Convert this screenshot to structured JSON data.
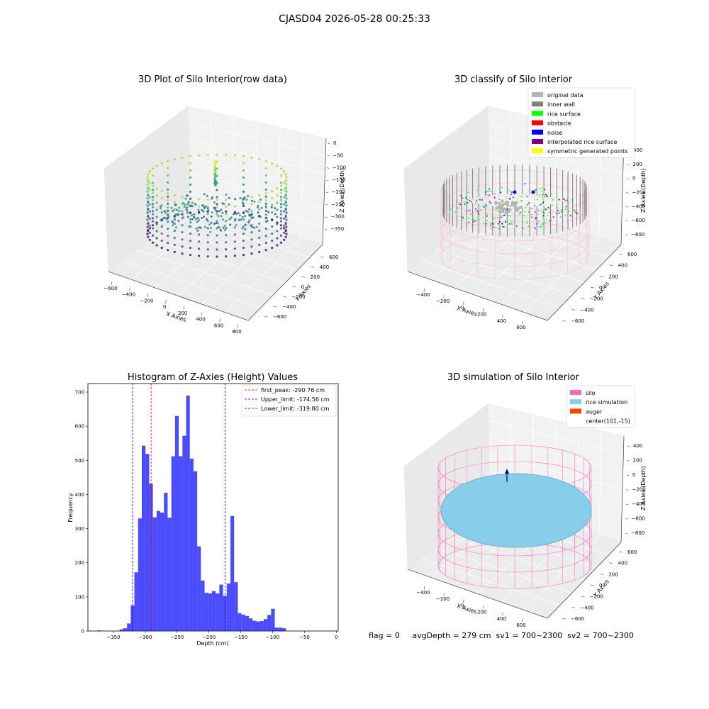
{
  "figure_title": "CJASD04 2026-05-28 00:25:33",
  "status": {
    "text": "flag = 0     avgDepth = 279 cm  sv1 = 700~2300  sv2 = 700~2300"
  },
  "panels": {
    "raw": {
      "title": "3D Plot of Silo Interior(row data)",
      "x_label": "X Axies",
      "y_label": "Y Axies",
      "z_label": "Z Axies (Depth)",
      "x_ticks": [
        "−600",
        "−400",
        "−200",
        "0",
        "200",
        "400",
        "600",
        "800"
      ],
      "y_ticks": [
        "−600",
        "−400",
        "−200",
        "0",
        "200",
        "400",
        "600"
      ],
      "z_ticks": [
        "0",
        "−50",
        "−100",
        "−150",
        "−200",
        "−250",
        "−300",
        "−350"
      ],
      "colormap": "viridis"
    },
    "classify": {
      "title": "3D classify of Silo Interior",
      "x_label": "X Axies",
      "y_label": "Y Axies",
      "z_label": "Z Axies (Depth)",
      "x_ticks": [
        "−400",
        "−200",
        "0",
        "200",
        "400",
        "600"
      ],
      "y_ticks": [
        "−600",
        "−400",
        "−200",
        "0",
        "200",
        "400",
        "600"
      ],
      "z_ticks": [
        "400",
        "200",
        "0",
        "−200",
        "−400",
        "−600",
        "−800"
      ],
      "legend": [
        {
          "label": "original data",
          "color": "#b4b4b4"
        },
        {
          "label": "inner wall",
          "color": "#808080"
        },
        {
          "label": "rice surface",
          "color": "#00ff00"
        },
        {
          "label": "obstacle",
          "color": "#ff0000"
        },
        {
          "label": "noise",
          "color": "#0000ff"
        },
        {
          "label": "interpolated rice surface",
          "color": "#800080"
        },
        {
          "label": "symmetric generated points",
          "color": "#ffff00"
        }
      ]
    },
    "simulation": {
      "title": "3D simulation of Silo Interior",
      "x_label": "X Axies",
      "y_label": "Y Axies",
      "z_label": "Z Axies (Depth)",
      "x_ticks": [
        "−400",
        "−200",
        "0",
        "200",
        "400",
        "600"
      ],
      "y_ticks": [
        "−600",
        "−400",
        "−200",
        "0",
        "200",
        "400",
        "600"
      ],
      "z_ticks": [
        "400",
        "200",
        "0",
        "−200",
        "−400",
        "−600",
        "−800"
      ],
      "legend": [
        {
          "label": "silo",
          "color": "#ff69b4"
        },
        {
          "label": "rice simulation",
          "color": "#87ceeb"
        },
        {
          "label": "auger",
          "color": "#ff4500"
        },
        {
          "label": "center(101,-15)",
          "color": "#ffffff"
        }
      ]
    }
  },
  "chart_data": [
    {
      "type": "bar",
      "title": "Histogram of Z-Axies (Height) Values",
      "xlabel": "Depth (cm)",
      "ylabel": "Frequency",
      "xlim": [
        -390,
        3
      ],
      "ylim": [
        0,
        725
      ],
      "x_ticks": [
        -350,
        -300,
        -250,
        -200,
        -150,
        -100,
        -50,
        0
      ],
      "x_tick_labels": [
        "−350",
        "−300",
        "−250",
        "−200",
        "−150",
        "−100",
        "−50",
        "0"
      ],
      "y_ticks": [
        0,
        100,
        200,
        300,
        400,
        500,
        600,
        700
      ],
      "bar_color": "#0000ff",
      "bin_width": 5.8,
      "bin_starts": [
        -375,
        -369.2,
        -363.4,
        -357.6,
        -351.8,
        -346,
        -340.2,
        -334.4,
        -328.6,
        -322.8,
        -317,
        -311.2,
        -305.4,
        -299.6,
        -293.8,
        -288,
        -282.2,
        -276.4,
        -270.6,
        -264.8,
        -259,
        -253.2,
        -247.4,
        -241.6,
        -235.8,
        -230,
        -224.2,
        -218.4,
        -212.6,
        -206.8,
        -201,
        -195.2,
        -189.4,
        -183.6,
        -177.8,
        -172,
        -166.2,
        -160.4,
        -154.6,
        -148.8,
        -143,
        -137.2,
        -131.4,
        -125.6,
        -119.8,
        -114,
        -108.2,
        -102.4,
        -96.6,
        -90.8,
        -85,
        -79.2,
        -73.4,
        -67.6,
        -61.8,
        -56,
        -50.2,
        -44.4,
        -38.6,
        -32.8,
        -27,
        -21.2,
        -15.4
      ],
      "frequencies": [
        2,
        0,
        0,
        0,
        0,
        0,
        5,
        8,
        22,
        75,
        172,
        330,
        543,
        519,
        432,
        333,
        352,
        347,
        405,
        332,
        512,
        630,
        512,
        572,
        690,
        505,
        468,
        248,
        148,
        112,
        110,
        117,
        110,
        136,
        103,
        139,
        337,
        143,
        52,
        48,
        44,
        37,
        30,
        28,
        29,
        35,
        47,
        65,
        10,
        10,
        8,
        0,
        0,
        0,
        0,
        0,
        0,
        0,
        0,
        0,
        0,
        0,
        0
      ],
      "reference_lines": [
        {
          "x": -290.76,
          "label": "first_peak: -290.76 cm",
          "color": "#ff0000"
        },
        {
          "x": -174.56,
          "label": "Upper_limit: -174.56 cm",
          "color": "#0000ff"
        },
        {
          "x": -319.8,
          "label": "Lower_limit: -319.80 cm",
          "color": "#0000ff"
        }
      ],
      "legend_position": "upper right"
    }
  ]
}
